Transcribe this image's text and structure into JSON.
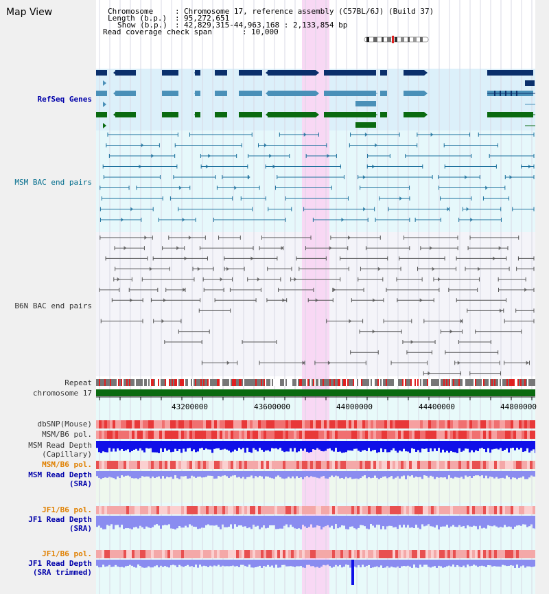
{
  "page": {
    "title": "Map View"
  },
  "header": {
    "chromosome_label": "Chromosome",
    "chromosome_value": "Chromosome 17, reference assembly (C57BL/6J) (Build 37)",
    "length_label": "Length (b.p.)",
    "length_value": "95,272,651",
    "show_label": "Show (b.p.)",
    "show_value": "42,829,315-44,963,168 : 2,133,854 bp",
    "coverage_label": "Read coverage check span",
    "coverage_value": "10,000"
  },
  "tracks": {
    "refseq": "RefSeq Genes",
    "msm_bac": "MSM BAC end pairs",
    "b6n_bac": "B6N BAC end pairs",
    "repeat": "Repeat",
    "chromosome": "chromosome 17",
    "dbsnp": "dbSNP(Mouse)",
    "msm_b6_pol1": "MSM/B6 pol.",
    "msm_depth_cap_1": "MSM Read Depth",
    "msm_depth_cap_2": "(Capillary)",
    "msm_b6_pol2": "MSM/B6 pol.",
    "msm_depth_sra_1": "MSM Read Depth",
    "msm_depth_sra_2": "(SRA)",
    "jf1_pol1": "JF1/B6 pol.",
    "jf1_depth_sra_1": "JF1 Read Depth",
    "jf1_depth_sra_2": "(SRA)",
    "jf1_pol2": "JF1/B6 pol.",
    "jf1_depth_trim_1": "JF1 Read Depth",
    "jf1_depth_trim_2": "(SRA trimmed)"
  },
  "axis": {
    "ticks": [
      "43200000",
      "43600000",
      "44000000",
      "44400000",
      "44800000"
    ]
  },
  "colors": {
    "refseq_band": "#dcf0fa",
    "msm_band": "#e6f8fb",
    "b6n_band": "#f4f4f9",
    "highlight": "#f8d8f4",
    "gene_dark": "#0b2f6b",
    "gene_mid": "#4a90b8",
    "gene_green": "#0a6a10",
    "bac_msm": "#1a6f9c",
    "bac_b6n": "#555555",
    "chrom_bar": "#0a6a10",
    "depth_dark": "#1010e8",
    "depth_light": "#8a8cf0",
    "snp_red": "#e83030",
    "pol_light": "#f5a0a0"
  }
}
